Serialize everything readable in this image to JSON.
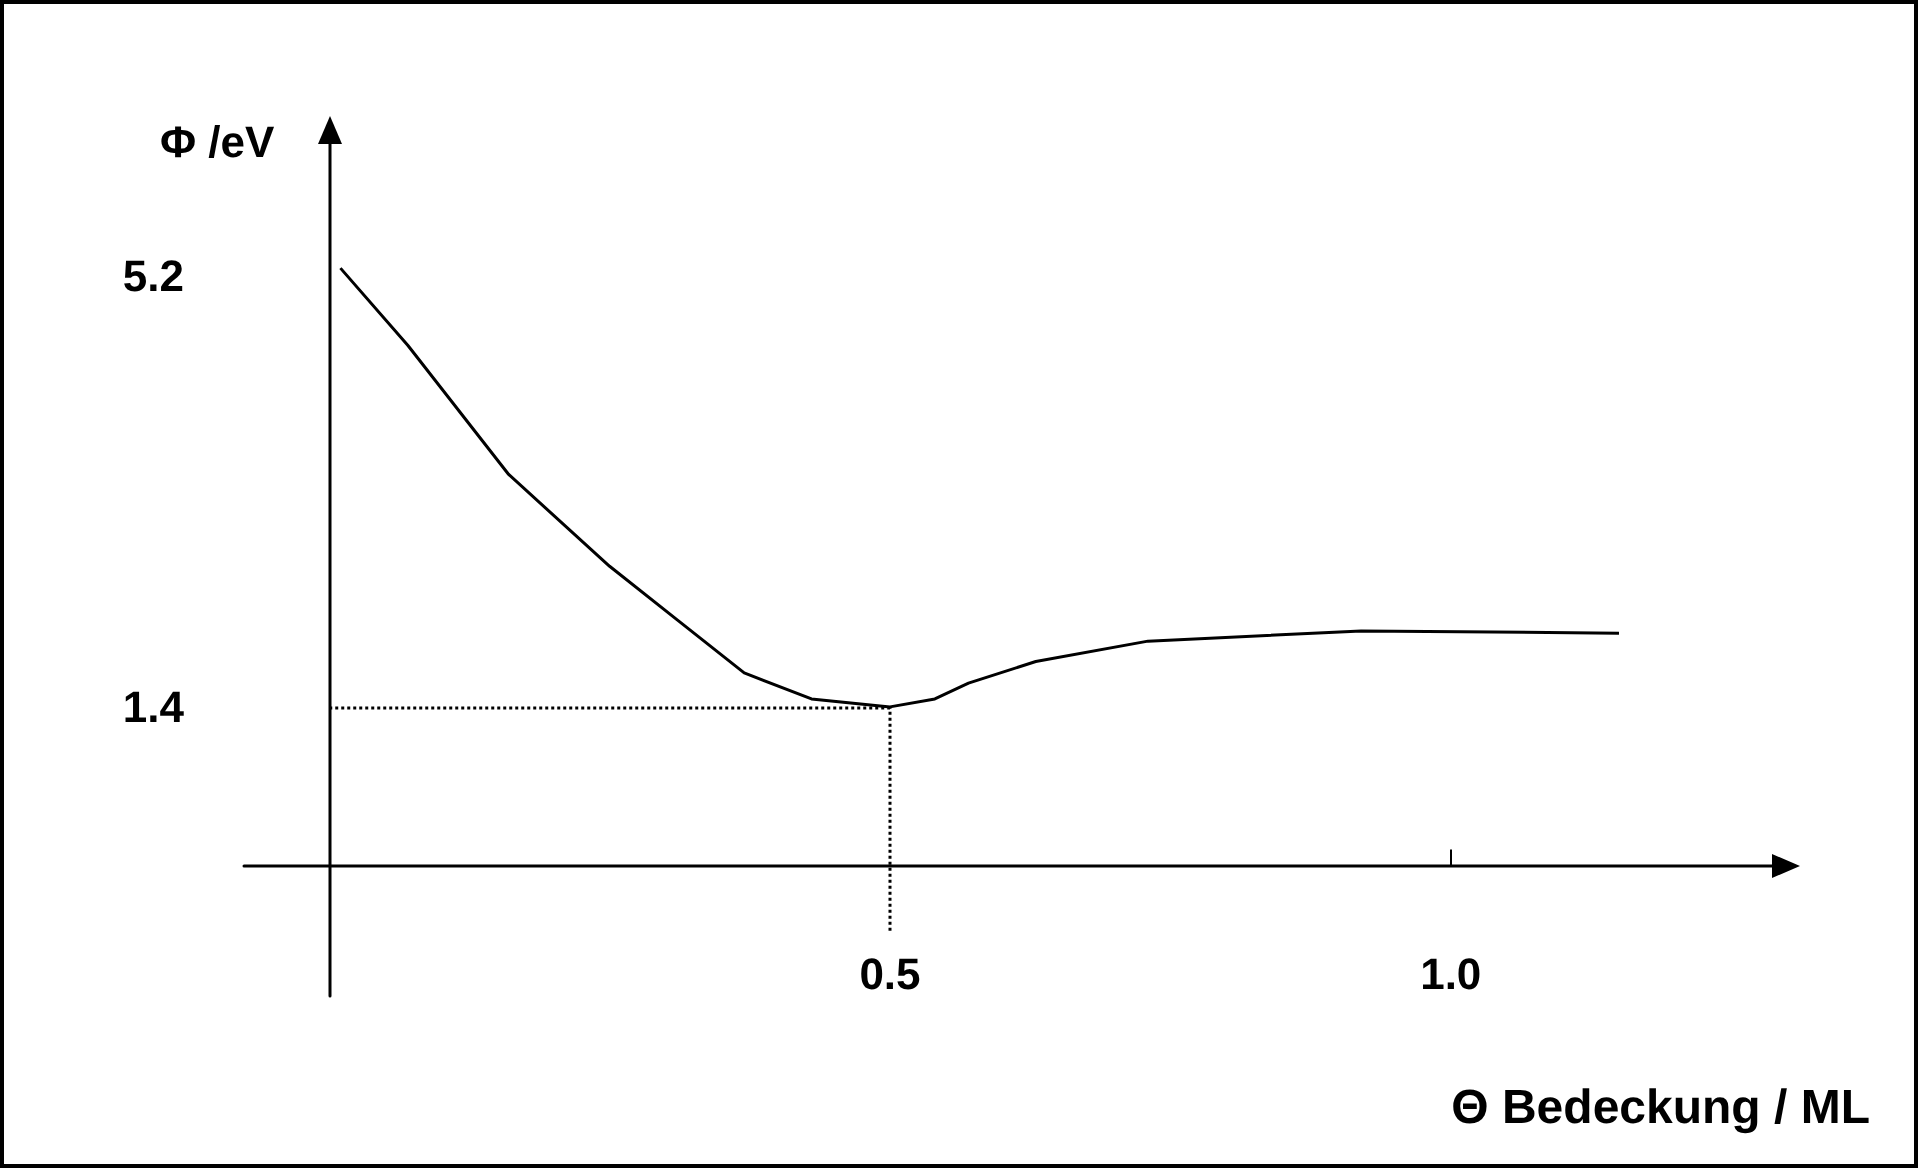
{
  "chart_data": {
    "type": "line",
    "xlabel": "Θ Bedeckung / ML",
    "ylabel": "Φ /eV",
    "x": [
      0.01,
      0.07,
      0.16,
      0.25,
      0.31,
      0.37,
      0.43,
      0.5,
      0.54,
      0.57,
      0.63,
      0.73,
      0.92,
      1.15
    ],
    "series": [
      {
        "color": "#000000",
        "values": [
          5.27,
          4.59,
          3.45,
          2.64,
          2.17,
          1.7,
          1.47,
          1.4,
          1.47,
          1.61,
          1.8,
          1.98,
          2.07,
          2.05
        ]
      }
    ],
    "xlim": [
      -0.076,
      1.29
    ],
    "ylim": [
      -1.15,
      6.4
    ],
    "xticks": [
      0.5,
      {
        "value": 1,
        "label": "1.0"
      }
    ],
    "yticks": [
      1.4,
      5.2
    ],
    "ref_lines": [
      {
        "axis": "y",
        "value": 1.4,
        "line_style": "dotted",
        "color": "#000000"
      },
      {
        "axis": "x",
        "value": 0.5,
        "line_style": "dotted",
        "color": "#000000"
      }
    ],
    "grid": false,
    "marker": "none",
    "line_style": "solid"
  }
}
